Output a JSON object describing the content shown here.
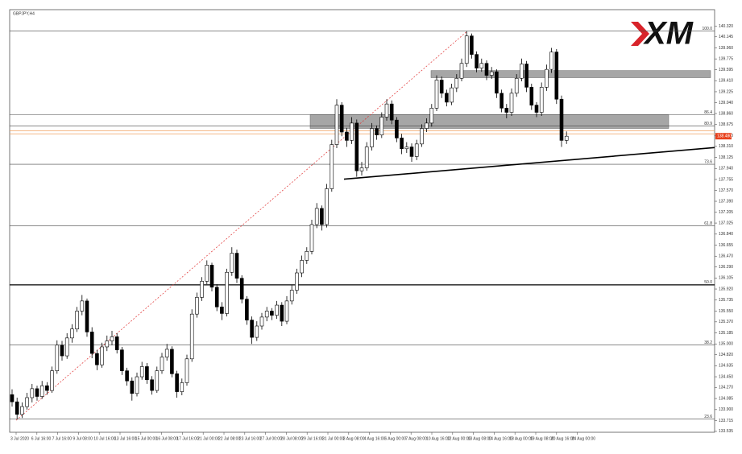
{
  "chart_data": {
    "type": "candlestick",
    "symbol": "GBPJPY,H4",
    "logo": "XM",
    "ylim": [
      133.52,
      140.6
    ],
    "yticks": [
      {
        "value": 140.32,
        "label": "140.320"
      },
      140.145,
      {
        "value": 139.96,
        "label": "139.960"
      },
      139.775,
      139.595,
      {
        "value": 139.41,
        "label": "139.410"
      },
      139.225,
      {
        "value": 139.04,
        "label": "139.040"
      },
      {
        "value": 138.86,
        "label": "138.860"
      },
      138.675,
      {
        "value": 138.49,
        "label": "138.490"
      },
      {
        "value": 138.31,
        "label": "138.310"
      },
      138.125,
      {
        "value": 137.94,
        "label": "137.940"
      },
      137.755,
      {
        "value": 137.57,
        "label": "137.570"
      },
      {
        "value": 137.39,
        "label": "137.390"
      },
      137.205,
      137.025,
      {
        "value": 136.84,
        "label": "136.840"
      },
      136.655,
      {
        "value": 136.47,
        "label": "136.470"
      },
      {
        "value": 136.29,
        "label": "136.290"
      },
      136.105,
      {
        "value": 135.92,
        "label": "135.920"
      },
      135.735,
      {
        "value": 135.55,
        "label": "135.550"
      },
      {
        "value": 135.37,
        "label": "135.370"
      },
      135.185,
      {
        "value": 135,
        "label": "135.000"
      },
      {
        "value": 134.82,
        "label": "134.820"
      },
      134.635,
      {
        "value": 134.45,
        "label": "134.450"
      },
      {
        "value": 134.27,
        "label": "134.270"
      },
      134.085,
      {
        "value": 133.9,
        "label": "133.900"
      },
      133.715,
      133.535
    ],
    "time_labels": [
      "3 Jul 2020",
      "6 Jul 16:00",
      "7 Jul 16:00",
      "9 Jul 08:00",
      "10 Jul 16:00",
      "13 Jul 16:00",
      "15 Jul 00:00",
      "16 Jul 08:00",
      "17 Jul 16:00",
      "21 Jul 00:00",
      "22 Jul 08:00",
      "23 Jul 16:00",
      "27 Jul 00:00",
      "28 Jul 08:00",
      "29 Jul 16:00",
      "31 Jul 00:00",
      "3 Aug 08:00",
      "4 Aug 16:00",
      "6 Aug 00:00",
      "7 Aug 08:00",
      "10 Aug 16:00",
      "12 Aug 00:00",
      "13 Aug 08:00",
      "14 Aug 16:00",
      "18 Aug 00:00",
      "19 Aug 08:00",
      "20 Aug 16:00",
      "24 Aug 00:00"
    ],
    "candles": [
      [
        134.15,
        134.24,
        133.95,
        134.03
      ],
      [
        134.03,
        134.1,
        133.74,
        133.82
      ],
      [
        133.82,
        134.02,
        133.76,
        133.95
      ],
      [
        133.95,
        134.18,
        133.9,
        134.1
      ],
      [
        134.1,
        134.33,
        134.02,
        134.25
      ],
      [
        134.25,
        134.3,
        134.05,
        134.12
      ],
      [
        134.12,
        134.38,
        134.08,
        134.3
      ],
      [
        134.3,
        134.36,
        134.15,
        134.22
      ],
      [
        134.22,
        134.62,
        134.18,
        134.55
      ],
      [
        134.55,
        135.06,
        134.5,
        134.98
      ],
      [
        134.98,
        135.05,
        134.72,
        134.8
      ],
      [
        134.8,
        135.18,
        134.75,
        135.1
      ],
      [
        135.1,
        135.33,
        135.02,
        135.25
      ],
      [
        135.25,
        135.62,
        135.2,
        135.55
      ],
      [
        135.55,
        135.82,
        135.48,
        135.72
      ],
      [
        135.72,
        135.76,
        135.12,
        135.2
      ],
      [
        135.2,
        135.28,
        134.76,
        134.84
      ],
      [
        134.84,
        134.9,
        134.56,
        134.65
      ],
      [
        134.65,
        135.02,
        134.6,
        134.95
      ],
      [
        134.95,
        135.14,
        134.88,
        135.05
      ],
      [
        135.05,
        135.22,
        134.98,
        135.12
      ],
      [
        135.12,
        135.18,
        134.84,
        134.9
      ],
      [
        134.9,
        134.95,
        134.48,
        134.55
      ],
      [
        134.55,
        134.6,
        134.3,
        134.38
      ],
      [
        134.38,
        134.44,
        134.05,
        134.17
      ],
      [
        134.17,
        134.52,
        134.12,
        134.45
      ],
      [
        134.45,
        134.7,
        134.4,
        134.62
      ],
      [
        134.62,
        134.68,
        134.33,
        134.4
      ],
      [
        134.4,
        134.46,
        134.15,
        134.22
      ],
      [
        134.22,
        134.62,
        134.18,
        134.55
      ],
      [
        134.55,
        134.85,
        134.5,
        134.78
      ],
      [
        134.78,
        135,
        134.72,
        134.91
      ],
      [
        134.91,
        134.96,
        134.44,
        134.5
      ],
      [
        134.5,
        134.55,
        134.1,
        134.2
      ],
      [
        134.2,
        134.42,
        134.14,
        134.35
      ],
      [
        134.35,
        134.82,
        134.3,
        134.75
      ],
      [
        134.75,
        135.58,
        134.7,
        135.5
      ],
      [
        135.5,
        135.86,
        135.44,
        135.78
      ],
      [
        135.78,
        136.12,
        135.72,
        136.05
      ],
      [
        136.05,
        136.4,
        136,
        136.32
      ],
      [
        136.32,
        136.36,
        135.88,
        135.95
      ],
      [
        135.95,
        136,
        135.55,
        135.62
      ],
      [
        135.62,
        135.7,
        135.4,
        135.51
      ],
      [
        135.51,
        136.26,
        135.46,
        136.2
      ],
      [
        136.2,
        136.62,
        136.14,
        136.52
      ],
      [
        136.52,
        136.58,
        136.02,
        136.1
      ],
      [
        136.1,
        136.15,
        135.68,
        135.75
      ],
      [
        135.75,
        135.8,
        135.32,
        135.4
      ],
      [
        135.4,
        135.46,
        135,
        135.11
      ],
      [
        135.11,
        135.38,
        135.05,
        135.3
      ],
      [
        135.3,
        135.52,
        135.24,
        135.45
      ],
      [
        135.45,
        135.62,
        135.38,
        135.55
      ],
      [
        135.55,
        135.6,
        135.4,
        135.48
      ],
      [
        135.48,
        135.72,
        135.42,
        135.65
      ],
      [
        135.65,
        135.7,
        135.3,
        135.38
      ],
      [
        135.38,
        135.8,
        135.33,
        135.72
      ],
      [
        135.72,
        135.98,
        135.66,
        135.9
      ],
      [
        135.9,
        136.26,
        135.84,
        136.19
      ],
      [
        136.19,
        136.48,
        136.12,
        136.4
      ],
      [
        136.4,
        136.62,
        136.34,
        136.55
      ],
      [
        136.55,
        137.08,
        136.5,
        137
      ],
      [
        137,
        137.36,
        136.94,
        137.27
      ],
      [
        137.27,
        137.32,
        136.9,
        137
      ],
      [
        137,
        137.68,
        136.95,
        137.6
      ],
      [
        137.6,
        138.42,
        137.55,
        138.34
      ],
      [
        138.34,
        139.1,
        138.28,
        139
      ],
      [
        139,
        139.05,
        138.48,
        138.55
      ],
      [
        138.55,
        138.62,
        138.3,
        138.41
      ],
      [
        138.41,
        138.8,
        138.35,
        138.7
      ],
      [
        138.7,
        138.76,
        137.8,
        137.9
      ],
      [
        137.9,
        138.05,
        137.82,
        137.95
      ],
      [
        137.95,
        138.38,
        137.9,
        138.3
      ],
      [
        138.3,
        138.7,
        138.24,
        138.61
      ],
      [
        138.61,
        138.66,
        138.42,
        138.5
      ],
      [
        138.5,
        138.88,
        138.45,
        138.8
      ],
      [
        138.8,
        139.1,
        138.74,
        139.02
      ],
      [
        139.02,
        139.08,
        138.68,
        138.75
      ],
      [
        138.75,
        138.8,
        138.38,
        138.45
      ],
      [
        138.45,
        138.52,
        138.18,
        138.27
      ],
      [
        138.27,
        138.38,
        138.2,
        138.3
      ],
      [
        138.3,
        138.36,
        138.05,
        138.14
      ],
      [
        138.14,
        138.42,
        138.08,
        138.35
      ],
      [
        138.35,
        138.68,
        138.3,
        138.61
      ],
      [
        138.61,
        138.78,
        138.55,
        138.7
      ],
      [
        138.7,
        139.02,
        138.64,
        138.95
      ],
      [
        138.95,
        139.5,
        138.9,
        139.42
      ],
      [
        139.42,
        139.48,
        139.12,
        139.2
      ],
      [
        139.2,
        139.26,
        138.98,
        139.05
      ],
      [
        139.05,
        139.36,
        139,
        139.29
      ],
      [
        139.29,
        139.52,
        139.22,
        139.45
      ],
      [
        139.45,
        139.78,
        139.4,
        139.7
      ],
      [
        139.7,
        140.24,
        139.64,
        140.16
      ],
      [
        140.16,
        140.2,
        139.78,
        139.85
      ],
      [
        139.85,
        139.9,
        139.55,
        139.62
      ],
      [
        139.62,
        139.78,
        139.56,
        139.7
      ],
      [
        139.7,
        139.75,
        139.42,
        139.5
      ],
      [
        139.5,
        139.64,
        139.44,
        139.56
      ],
      [
        139.56,
        139.6,
        139.12,
        139.2
      ],
      [
        139.2,
        139.26,
        138.88,
        138.95
      ],
      [
        138.95,
        139.02,
        138.78,
        138.88
      ],
      [
        138.88,
        139.28,
        138.82,
        139.2
      ],
      [
        139.2,
        139.52,
        139.14,
        139.45
      ],
      [
        139.45,
        139.78,
        139.4,
        139.69
      ],
      [
        139.69,
        139.74,
        139.22,
        139.3
      ],
      [
        139.3,
        139.36,
        138.92,
        139
      ],
      [
        139,
        139.05,
        138.8,
        138.88
      ],
      [
        138.88,
        139.38,
        138.82,
        139.3
      ],
      [
        139.3,
        139.68,
        139.24,
        139.6
      ],
      [
        139.6,
        139.96,
        139.54,
        139.89
      ],
      [
        139.89,
        139.94,
        139.02,
        139.1
      ],
      [
        139.1,
        139.16,
        138.3,
        138.41
      ],
      [
        138.41,
        138.56,
        138.35,
        138.48
      ]
    ],
    "fib_levels": [
      {
        "label": "100.0",
        "price": 140.24
      },
      {
        "label": "86.4",
        "price": 138.84
      },
      {
        "label": "80.9",
        "price": 138.65
      },
      {
        "label": "73.6",
        "price": 138.01
      },
      {
        "label": "61.8",
        "price": 136.98
      },
      {
        "label": "50.0",
        "price": 135.99
      },
      {
        "label": "38.2",
        "price": 134.98
      },
      {
        "label": "23.6",
        "price": 133.74
      }
    ],
    "fib_line": [
      133.72,
      140.24
    ],
    "zones": [
      [
        139.58,
        139.46
      ],
      [
        138.84,
        138.61
      ]
    ],
    "trendline": [
      137.76,
      138.29
    ],
    "orange_lines": [
      138.57,
      138.52
    ],
    "last_price": {
      "value": 138.48,
      "label": "138.480"
    },
    "bull_color": "#ffffff",
    "bear_color": "#000000",
    "zone_color": "#a6a6a6",
    "fib_color": "#e03030"
  }
}
